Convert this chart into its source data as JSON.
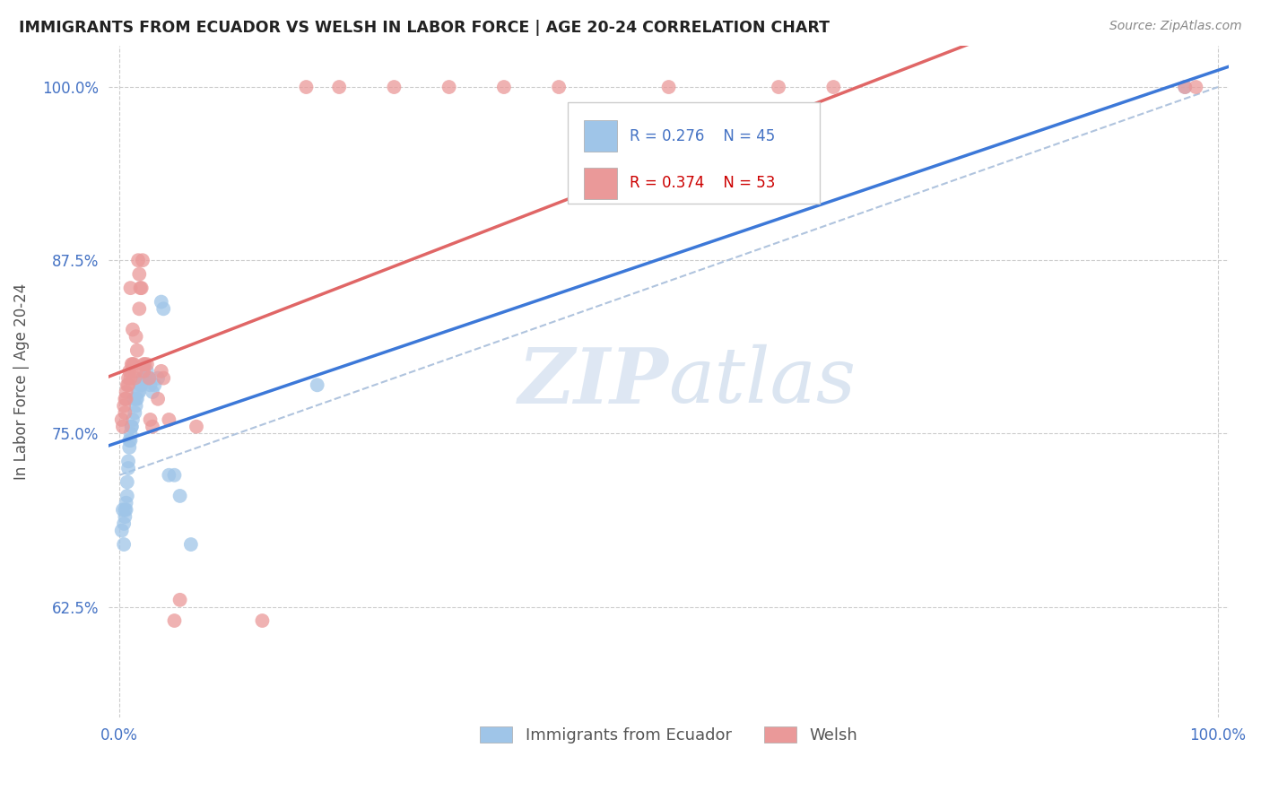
{
  "title": "IMMIGRANTS FROM ECUADOR VS WELSH IN LABOR FORCE | AGE 20-24 CORRELATION CHART",
  "source": "Source: ZipAtlas.com",
  "ylabel": "In Labor Force | Age 20-24",
  "ytick_labels": [
    "100.0%",
    "87.5%",
    "75.0%",
    "62.5%"
  ],
  "ytick_values": [
    1.0,
    0.875,
    0.75,
    0.625
  ],
  "xlim": [
    -0.01,
    1.01
  ],
  "ylim": [
    0.545,
    1.03
  ],
  "legend_labels": [
    "Immigrants from Ecuador",
    "Welsh"
  ],
  "blue_R": "0.276",
  "blue_N": "45",
  "pink_R": "0.374",
  "pink_N": "53",
  "blue_color": "#9fc5e8",
  "pink_color": "#ea9999",
  "blue_line_color": "#3c78d8",
  "pink_line_color": "#e06666",
  "dashed_line_color": "#b0c4de",
  "blue_scatter_x": [
    0.002,
    0.003,
    0.004,
    0.004,
    0.005,
    0.005,
    0.006,
    0.006,
    0.007,
    0.007,
    0.008,
    0.008,
    0.009,
    0.009,
    0.01,
    0.01,
    0.011,
    0.011,
    0.012,
    0.013,
    0.014,
    0.015,
    0.015,
    0.016,
    0.017,
    0.018,
    0.019,
    0.02,
    0.021,
    0.022,
    0.023,
    0.025,
    0.027,
    0.028,
    0.03,
    0.032,
    0.035,
    0.038,
    0.04,
    0.045,
    0.05,
    0.055,
    0.065,
    0.18,
    0.97
  ],
  "blue_scatter_y": [
    0.68,
    0.695,
    0.67,
    0.685,
    0.695,
    0.69,
    0.695,
    0.7,
    0.715,
    0.705,
    0.73,
    0.725,
    0.745,
    0.74,
    0.745,
    0.75,
    0.755,
    0.755,
    0.76,
    0.775,
    0.765,
    0.77,
    0.775,
    0.775,
    0.78,
    0.78,
    0.785,
    0.785,
    0.79,
    0.79,
    0.79,
    0.795,
    0.79,
    0.785,
    0.78,
    0.785,
    0.79,
    0.845,
    0.84,
    0.72,
    0.72,
    0.705,
    0.67,
    0.785,
    1.0
  ],
  "pink_scatter_x": [
    0.002,
    0.003,
    0.004,
    0.005,
    0.005,
    0.006,
    0.006,
    0.007,
    0.008,
    0.008,
    0.009,
    0.01,
    0.01,
    0.011,
    0.012,
    0.012,
    0.013,
    0.014,
    0.015,
    0.015,
    0.016,
    0.017,
    0.018,
    0.018,
    0.019,
    0.02,
    0.021,
    0.022,
    0.022,
    0.023,
    0.025,
    0.027,
    0.028,
    0.03,
    0.035,
    0.038,
    0.04,
    0.045,
    0.05,
    0.055,
    0.07,
    0.13,
    0.17,
    0.2,
    0.25,
    0.3,
    0.35,
    0.4,
    0.5,
    0.6,
    0.65,
    0.97,
    0.98
  ],
  "pink_scatter_y": [
    0.76,
    0.755,
    0.77,
    0.775,
    0.765,
    0.775,
    0.78,
    0.785,
    0.79,
    0.785,
    0.795,
    0.79,
    0.855,
    0.8,
    0.825,
    0.8,
    0.8,
    0.79,
    0.82,
    0.795,
    0.81,
    0.875,
    0.865,
    0.84,
    0.855,
    0.855,
    0.875,
    0.795,
    0.8,
    0.8,
    0.8,
    0.79,
    0.76,
    0.755,
    0.775,
    0.795,
    0.79,
    0.76,
    0.615,
    0.63,
    0.755,
    0.615,
    1.0,
    1.0,
    1.0,
    1.0,
    1.0,
    1.0,
    1.0,
    1.0,
    1.0,
    1.0,
    1.0
  ]
}
